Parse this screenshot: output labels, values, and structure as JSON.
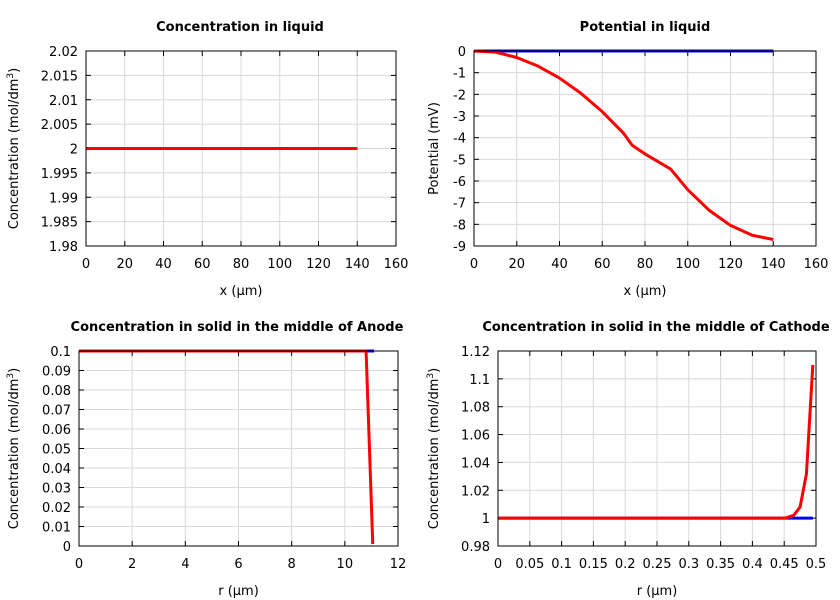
{
  "chart_data": [
    {
      "type": "line",
      "title": "Concentration in liquid",
      "xlabel": "x (µm)",
      "ylabel": "Concentration (mol/dm",
      "ylabel_sup": "3",
      "ylabel_end": ")",
      "xlim": [
        0,
        160
      ],
      "ylim": [
        1.98,
        2.02
      ],
      "xticks": [
        0,
        20,
        40,
        60,
        80,
        100,
        120,
        140,
        160
      ],
      "yticks": [
        1.98,
        1.985,
        1.99,
        1.995,
        2,
        2.005,
        2.01,
        2.015,
        2.02
      ],
      "grid": true,
      "series": [
        {
          "color": "#0000ff",
          "x": [
            0,
            140
          ],
          "y": [
            2,
            2
          ]
        },
        {
          "color": "#ff0000",
          "x": [
            0,
            140
          ],
          "y": [
            2,
            2
          ]
        }
      ]
    },
    {
      "type": "line",
      "title": "Potential in liquid",
      "xlabel": "x (µm)",
      "ylabel": "Potential (mV)",
      "xlim": [
        0,
        160
      ],
      "ylim": [
        -9,
        0
      ],
      "xticks": [
        0,
        20,
        40,
        60,
        80,
        100,
        120,
        140,
        160
      ],
      "yticks": [
        -9,
        -8,
        -7,
        -6,
        -5,
        -4,
        -3,
        -2,
        -1,
        0
      ],
      "grid": true,
      "series": [
        {
          "color": "#0000ff",
          "x": [
            0,
            140
          ],
          "y": [
            0,
            0
          ]
        },
        {
          "color": "#ff0000",
          "x": [
            0,
            10,
            20,
            30,
            40,
            50,
            60,
            70,
            74,
            80,
            92,
            100,
            110,
            120,
            130,
            140
          ],
          "y": [
            0,
            -0.05,
            -0.3,
            -0.7,
            -1.25,
            -1.95,
            -2.8,
            -3.8,
            -4.35,
            -4.75,
            -5.45,
            -6.4,
            -7.35,
            -8.05,
            -8.5,
            -8.7
          ]
        }
      ]
    },
    {
      "type": "line",
      "title": "Concentration in solid in the middle of Anode",
      "xlabel": "r (µm)",
      "ylabel": "Concentration (mol/dm",
      "ylabel_sup": "3",
      "ylabel_end": ")",
      "xlim": [
        0,
        12
      ],
      "ylim": [
        0,
        0.1
      ],
      "xticks": [
        0,
        2,
        4,
        6,
        8,
        10,
        12
      ],
      "yticks": [
        0,
        0.01,
        0.02,
        0.03,
        0.04,
        0.05,
        0.06,
        0.07,
        0.08,
        0.09,
        0.1
      ],
      "grid": true,
      "series": [
        {
          "color": "#0000ff",
          "x": [
            0,
            11.1
          ],
          "y": [
            0.1,
            0.1
          ]
        },
        {
          "color": "#ff0000",
          "x": [
            0,
            10.8,
            11.05
          ],
          "y": [
            0.1,
            0.1,
            0.001
          ]
        }
      ]
    },
    {
      "type": "line",
      "title": "Concentration in solid in the middle of Cathode",
      "xlabel": "r (µm)",
      "ylabel": "Concentration (mol/dm",
      "ylabel_sup": "3",
      "ylabel_end": ")",
      "xlim": [
        0,
        0.5
      ],
      "ylim": [
        0.98,
        1.12
      ],
      "xticks": [
        0,
        0.05,
        0.1,
        0.15,
        0.2,
        0.25,
        0.3,
        0.35,
        0.4,
        0.45,
        0.5
      ],
      "yticks": [
        0.98,
        1,
        1.02,
        1.04,
        1.06,
        1.08,
        1.1,
        1.12
      ],
      "grid": true,
      "series": [
        {
          "color": "#0000ff",
          "x": [
            0,
            0.495
          ],
          "y": [
            1,
            1
          ]
        },
        {
          "color": "#ff0000",
          "x": [
            0,
            0.45,
            0.455,
            0.465,
            0.475,
            0.485,
            0.495
          ],
          "y": [
            1,
            1,
            1.0005,
            1.002,
            1.008,
            1.032,
            1.11
          ]
        }
      ]
    }
  ]
}
